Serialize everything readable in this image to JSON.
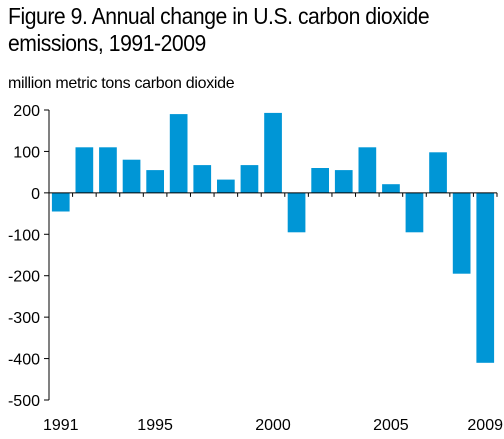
{
  "chart_data": {
    "type": "bar",
    "title": "Figure 9. Annual change in U.S. carbon dioxide emissions, 1991-2009",
    "ylabel": "million metric tons carbon dioxide",
    "xlabel": "",
    "categories": [
      "1991",
      "1992",
      "1993",
      "1994",
      "1995",
      "1996",
      "1997",
      "1998",
      "1999",
      "2000",
      "2001",
      "2002",
      "2003",
      "2004",
      "2005",
      "2006",
      "2007",
      "2008",
      "2009"
    ],
    "values": [
      -45,
      110,
      110,
      80,
      55,
      190,
      67,
      32,
      67,
      193,
      -95,
      60,
      55,
      110,
      21,
      -95,
      98,
      -195,
      -410
    ],
    "ylim": [
      -500,
      200
    ],
    "yticks": [
      200,
      100,
      0,
      -100,
      -200,
      -300,
      -400,
      -500
    ],
    "xticks": [
      "1991",
      "1995",
      "2000",
      "2005",
      "2009"
    ],
    "grid": false,
    "legend": "none",
    "bar_color": "#0096d6"
  }
}
